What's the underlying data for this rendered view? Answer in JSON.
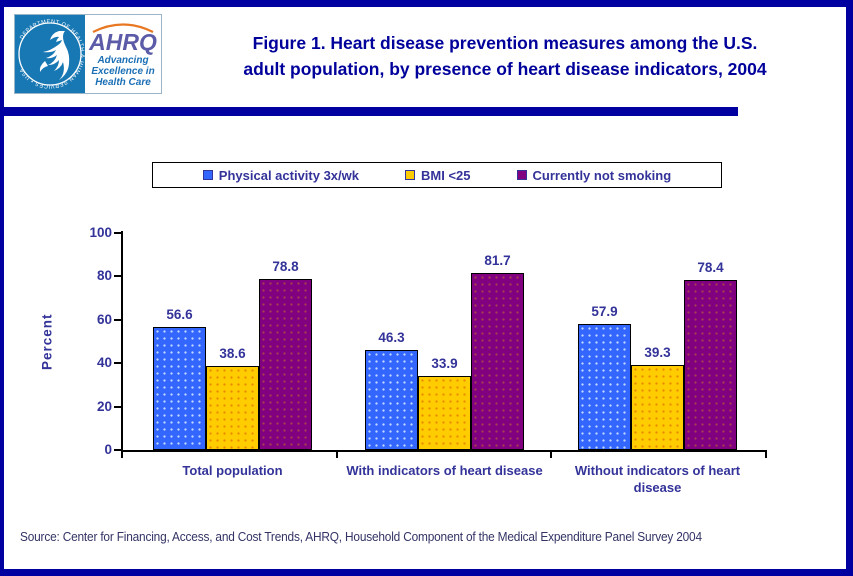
{
  "header": {
    "title_line1": "Figure 1. Heart disease prevention measures among the U.S.",
    "title_line2": "adult population, by presence of heart disease indicators, 2004",
    "logo": {
      "ring_text": "DEPARTMENT OF HEALTH & HUMAN SERVICES • USA",
      "ahrq_word": "AHRQ",
      "tagline_line1": "Advancing",
      "tagline_line2": "Excellence in",
      "tagline_line3": "Health Care"
    }
  },
  "chart_data": {
    "type": "bar",
    "categories": [
      "Total population",
      "With indicators of heart disease",
      "Without indicators of heart disease"
    ],
    "series": [
      {
        "name": "Physical activity 3x/wk",
        "color": "#3366FF",
        "values": [
          56.6,
          46.3,
          57.9
        ]
      },
      {
        "name": "BMI <25",
        "color": "#FFCC00",
        "values": [
          38.6,
          33.9,
          39.3
        ]
      },
      {
        "name": "Currently not smoking",
        "color": "#800080",
        "values": [
          78.8,
          81.7,
          78.4
        ]
      }
    ],
    "ylabel": "Percent",
    "xlabel": "",
    "ylim": [
      0,
      100
    ],
    "yticks": [
      0,
      20,
      40,
      60,
      80,
      100
    ],
    "grid": false,
    "legend_position": "top",
    "value_labels_shown": true
  },
  "footer": {
    "source": "Source: Center for Financing, Access, and Cost Trends, AHRQ, Household Component of the Medical Expenditure Panel Survey 2004"
  },
  "colors": {
    "frame": "#0000A0",
    "title_text": "#00009B",
    "chart_text": "#333399",
    "hhs_blue": "#1878B4",
    "ahrq_purple": "#5B5BA8",
    "tagline_blue": "#1B6FB5"
  }
}
